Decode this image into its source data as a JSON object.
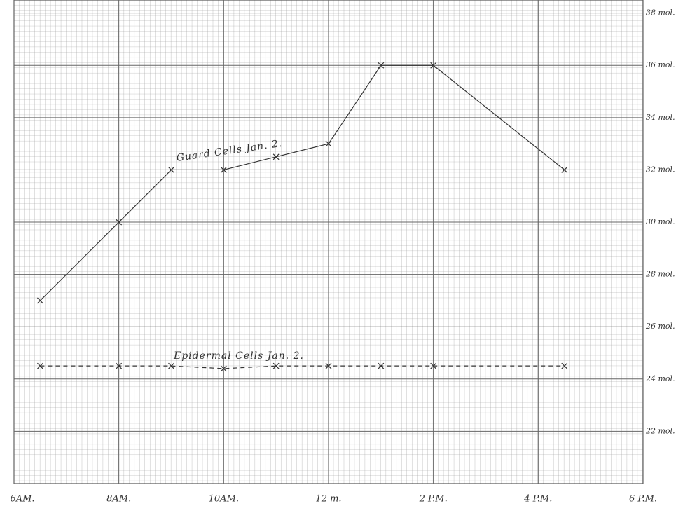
{
  "chart_data": {
    "type": "line",
    "x_ticks_note_free": null,
    "xlim": [
      6,
      18
    ],
    "xticks": [
      {
        "value": 6,
        "label": "6AM."
      },
      {
        "value": 8,
        "label": "8AM."
      },
      {
        "value": 10,
        "label": "10AM."
      },
      {
        "value": 12,
        "label": "12 m."
      },
      {
        "value": 14,
        "label": "2 P.M."
      },
      {
        "value": 16,
        "label": "4 P.M."
      },
      {
        "value": 18,
        "label": "6 P.M."
      }
    ],
    "ylim": [
      20,
      38.5
    ],
    "yticks": [
      {
        "value": 22,
        "label": "22 mol."
      },
      {
        "value": 24,
        "label": "24 mol."
      },
      {
        "value": 26,
        "label": "26 mol."
      },
      {
        "value": 28,
        "label": "28 mol."
      },
      {
        "value": 30,
        "label": "30 mol."
      },
      {
        "value": 32,
        "label": "32 mol."
      },
      {
        "value": 34,
        "label": "34 mol."
      },
      {
        "value": 36,
        "label": "36 mol."
      },
      {
        "value": 38,
        "label": "38 mol."
      }
    ],
    "grid": true,
    "series": [
      {
        "name": "Guard Cells Jan. 2.",
        "color": "#333333",
        "linestyle": "solid",
        "x": [
          6.5,
          8,
          9,
          10,
          11,
          12,
          13,
          14,
          16.5
        ],
        "values": [
          27,
          30,
          32,
          32,
          32.5,
          33,
          36,
          36,
          32
        ]
      },
      {
        "name": "Epidermal Cells Jan. 2.",
        "color": "#333333",
        "linestyle": "dashed",
        "x": [
          6.5,
          8,
          9,
          10,
          11,
          12,
          13,
          14,
          16.5
        ],
        "values": [
          24.5,
          24.5,
          24.5,
          24.4,
          24.5,
          24.5,
          24.5,
          24.5,
          24.5
        ]
      }
    ]
  }
}
